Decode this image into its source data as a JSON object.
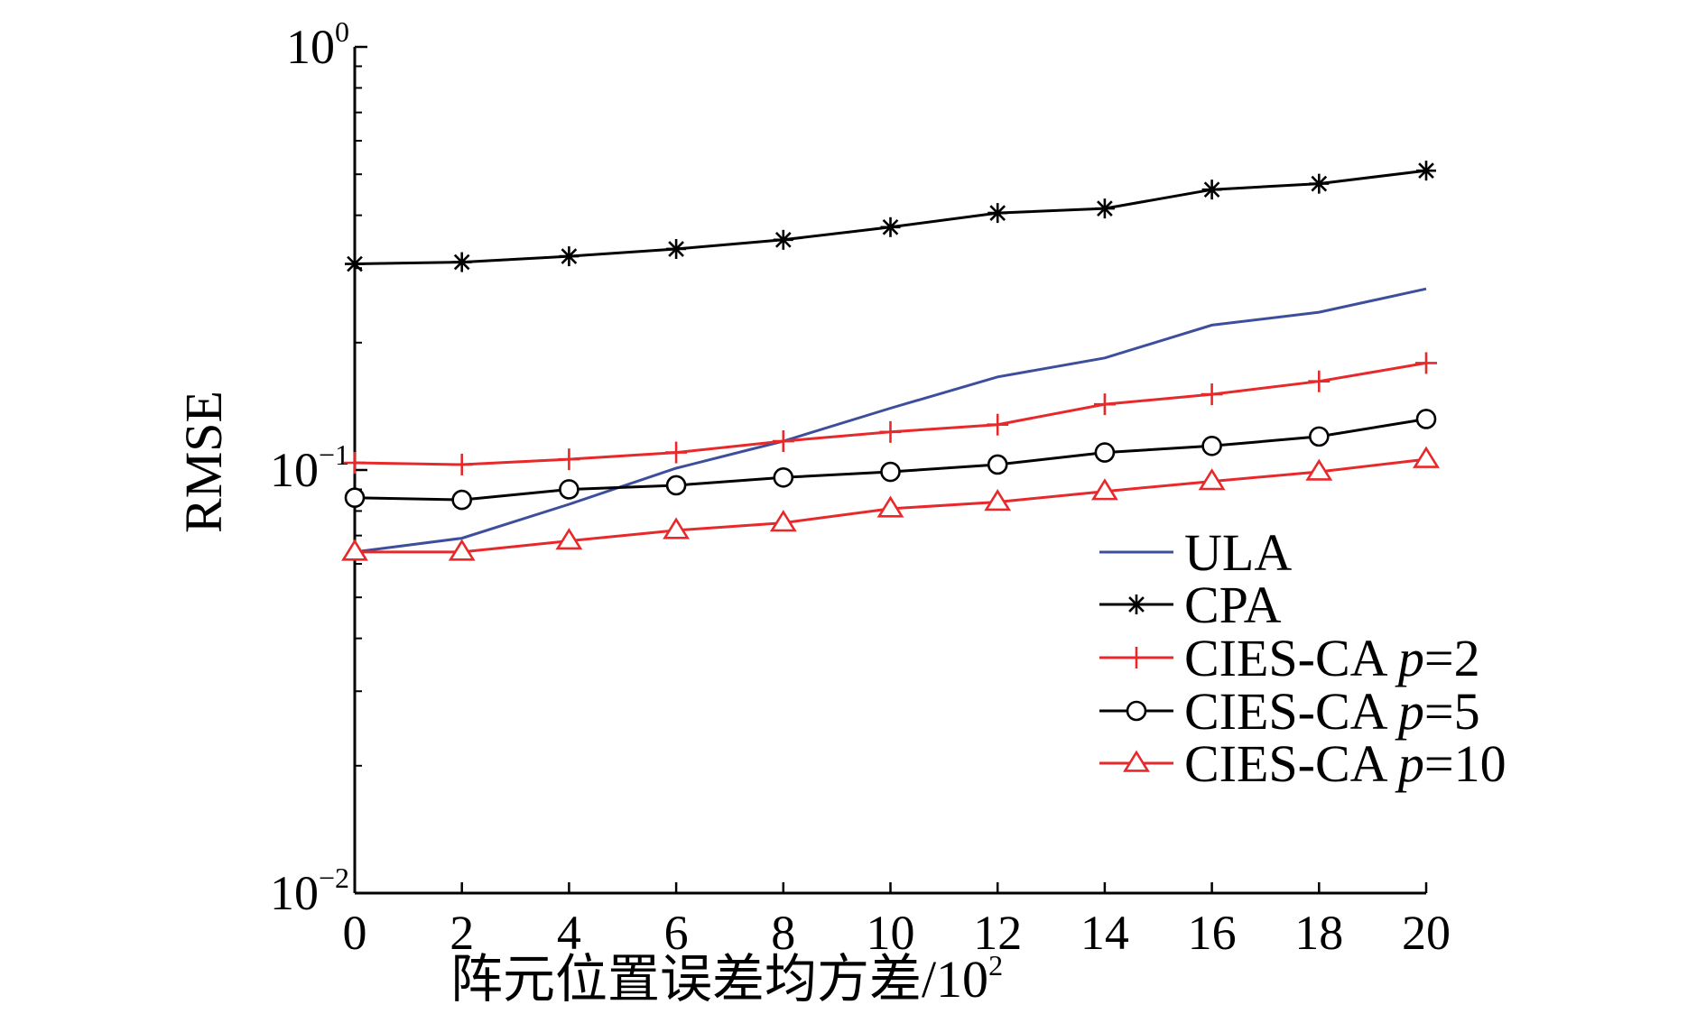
{
  "chart_data": {
    "type": "line",
    "title": "",
    "xlabel": "阵元位置误差均方差/10",
    "xlabel_sup": "2",
    "ylabel": "RMSE",
    "y_scale": "log",
    "xlim": [
      0,
      20
    ],
    "ylim": [
      0.01,
      1
    ],
    "x_ticks": [
      "0",
      "2",
      "4",
      "6",
      "8",
      "10",
      "12",
      "14",
      "16",
      "18",
      "20"
    ],
    "y_ticks": [
      {
        "value": 1,
        "base": "10",
        "exp": "0"
      },
      {
        "value": 0.1,
        "base": "10",
        "exp": "−1"
      },
      {
        "value": 0.01,
        "base": "10",
        "exp": "−2"
      }
    ],
    "grid": false,
    "legend_position": "bottom-right",
    "x": [
      0,
      2,
      4,
      6,
      8,
      10,
      12,
      14,
      16,
      18,
      20
    ],
    "series": [
      {
        "name": "ULA",
        "legend_label": "ULA",
        "legend_param": "",
        "color": "#3d4f9c",
        "marker": "none",
        "values": [
          0.064,
          0.069,
          0.083,
          0.101,
          0.117,
          0.14,
          0.166,
          0.184,
          0.22,
          0.236,
          0.268
        ]
      },
      {
        "name": "CPA",
        "legend_label": "CPA",
        "legend_param": "",
        "color": "#000000",
        "marker": "asterisk",
        "values": [
          0.307,
          0.31,
          0.32,
          0.333,
          0.35,
          0.375,
          0.405,
          0.415,
          0.46,
          0.475,
          0.51
        ]
      },
      {
        "name": "CIES-CA p=2",
        "legend_label": "CIES-CA ",
        "legend_param": "p",
        "legend_value": "=2",
        "color": "#e8292b",
        "marker": "plus",
        "values": [
          0.104,
          0.103,
          0.106,
          0.11,
          0.117,
          0.123,
          0.128,
          0.143,
          0.151,
          0.162,
          0.179
        ]
      },
      {
        "name": "CIES-CA p=5",
        "legend_label": "CIES-CA ",
        "legend_param": "p",
        "legend_value": "=5",
        "color": "#000000",
        "marker": "circle",
        "values": [
          0.086,
          0.085,
          0.09,
          0.092,
          0.096,
          0.099,
          0.103,
          0.11,
          0.114,
          0.12,
          0.132
        ]
      },
      {
        "name": "CIES-CA p=10",
        "legend_label": "CIES-CA ",
        "legend_param": "p",
        "legend_value": "=10",
        "color": "#e8292b",
        "marker": "triangle",
        "values": [
          0.064,
          0.064,
          0.068,
          0.072,
          0.075,
          0.081,
          0.084,
          0.089,
          0.094,
          0.099,
          0.106
        ]
      }
    ]
  }
}
